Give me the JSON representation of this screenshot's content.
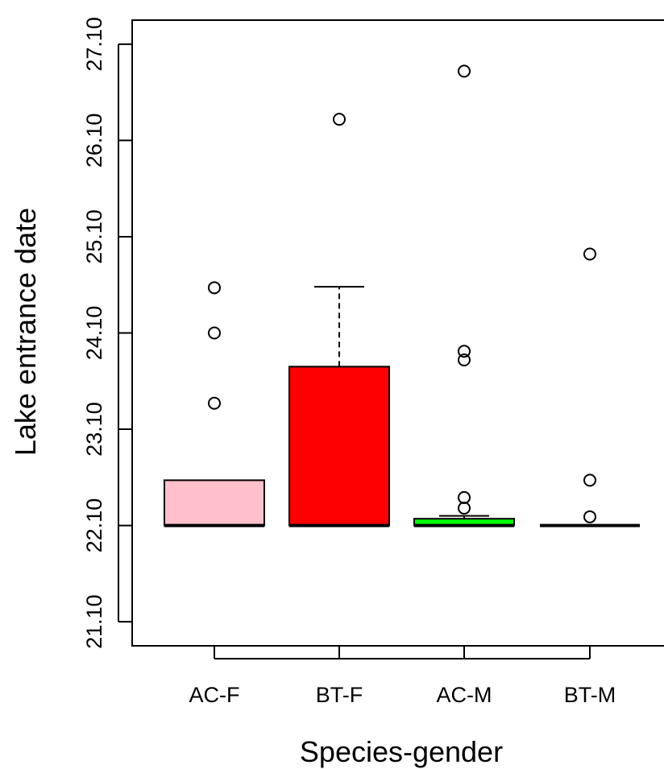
{
  "chart_data": {
    "type": "box",
    "xlabel": "Species-gender",
    "ylabel": "Lake entrance date",
    "y_tick_labels": [
      "21.10",
      "22.10",
      "23.10",
      "24.10",
      "25.10",
      "26.10",
      "27.10"
    ],
    "y_tick_values": [
      -1,
      0,
      1,
      2,
      3,
      4,
      5
    ],
    "y_range": [
      -1.25,
      5.25
    ],
    "categories": [
      "AC-F",
      "BT-F",
      "AC-M",
      "BT-M"
    ],
    "boxes": [
      {
        "category": "AC-F",
        "color": "#FFC0CB",
        "min": 0,
        "q1": 0,
        "median": 0,
        "q3": 0.47,
        "max": 0.47,
        "outliers": [
          1.27,
          2.0,
          2.47
        ]
      },
      {
        "category": "BT-F",
        "color": "#FF0000",
        "min": 0,
        "q1": 0,
        "median": 0,
        "q3": 1.65,
        "max": 2.48,
        "outliers": [
          4.22
        ]
      },
      {
        "category": "AC-M",
        "color": "#00FF00",
        "min": 0,
        "q1": 0,
        "median": 0,
        "q3": 0.07,
        "max": 0.1,
        "outliers": [
          0.18,
          0.29,
          1.72,
          1.81,
          4.72
        ]
      },
      {
        "category": "BT-M",
        "color": "#00FF00",
        "min": 0,
        "q1": 0,
        "median": 0,
        "q3": 0,
        "max": 0,
        "outliers": [
          0.09,
          0.47,
          2.82
        ]
      }
    ]
  }
}
